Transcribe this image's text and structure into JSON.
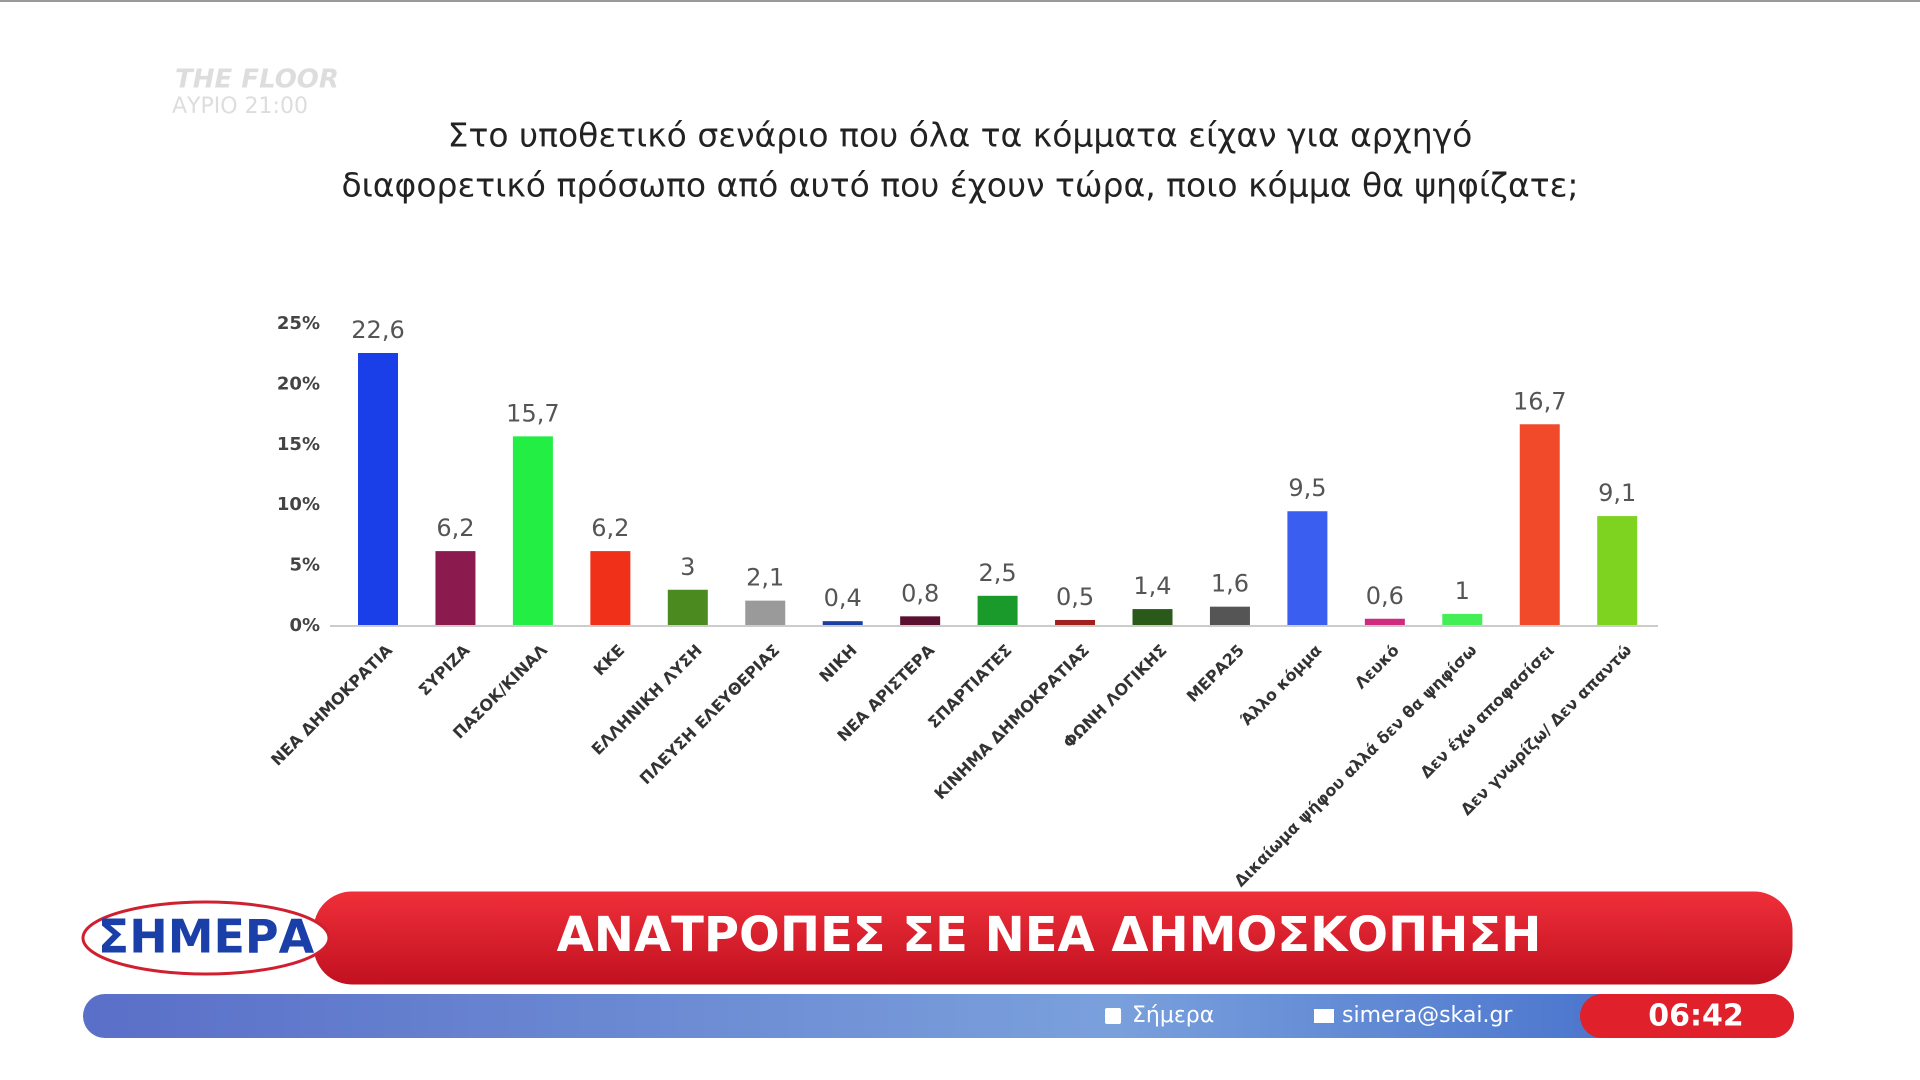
{
  "chart_data": {
    "type": "bar",
    "title": [
      "Στο υποθετικό σενάριο που όλα τα κόμματα είχαν για αρχηγό",
      "διαφορετικό πρόσωπο από αυτό που έχουν τώρα, ποιο κόμμα θα ψηφίζατε;"
    ],
    "categories": [
      "ΝΕΑ ΔΗΜΟΚΡΑΤΙΑ",
      "ΣΥΡΙΖΑ",
      "ΠΑΣΟΚ/ΚΙΝΑΛ",
      "ΚΚΕ",
      "ΕΛΛΗΝΙΚΗ ΛΥΣΗ",
      "ΠΛΕΥΣΗ ΕΛΕΥΘΕΡΙΑΣ",
      "ΝΙΚΗ",
      "ΝΕΑ ΑΡΙΣΤΕΡΑ",
      "ΣΠΑΡΤΙΑΤΕΣ",
      "ΚΙΝΗΜΑ ΔΗΜΟΚΡΑΤΙΑΣ",
      "ΦΩΝΗ ΛΟΓΙΚΗΣ",
      "ΜΕΡΑ25",
      "Άλλο κόμμα",
      "Λευκό",
      "Δικαίωμα ψήφου αλλά δεν θα ψηφίσω",
      "Δεν έχω αποφασίσει",
      "Δεν γνωρίζω/ Δεν απαντώ"
    ],
    "values": [
      22.6,
      6.2,
      15.7,
      6.2,
      3,
      2.1,
      0.4,
      0.8,
      2.5,
      0.5,
      1.4,
      1.6,
      9.5,
      0.6,
      1,
      16.7,
      9.1
    ],
    "value_labels": [
      "22,6",
      "6,2",
      "15,7",
      "6,2",
      "3",
      "2,1",
      "0,4",
      "0,8",
      "2,5",
      "0,5",
      "1,4",
      "1,6",
      "9,5",
      "0,6",
      "1",
      "16,7",
      "9,1"
    ],
    "colors": [
      "#1a3fe8",
      "#8b1a4f",
      "#22ee44",
      "#f03018",
      "#4a8a1e",
      "#9a9a9a",
      "#1a3fa0",
      "#5a1030",
      "#1a9a2a",
      "#a02020",
      "#2a5a1a",
      "#555555",
      "#3a5ef0",
      "#d02a80",
      "#44ee55",
      "#f04a2a",
      "#7ed321"
    ],
    "ylim": [
      0,
      25
    ],
    "yticks": [
      {
        "value": 0,
        "label": "0%"
      },
      {
        "value": 5,
        "label": "5%"
      },
      {
        "value": 10,
        "label": "10%"
      },
      {
        "value": 15,
        "label": "15%"
      },
      {
        "value": 20,
        "label": "20%"
      },
      {
        "value": 25,
        "label": "25%"
      }
    ],
    "grid": false
  },
  "overlay": {
    "promo_title": "THE FLOOR",
    "promo_time": "ΑΥΡΙΟ 21:00",
    "show_logo": "ΣΗΜΕΡΑ",
    "headline": "ΑΝΑΤΡΟΠΕΣ ΣΕ ΝΕΑ ΔΗΜΟΣΚΟΠΗΣΗ",
    "facebook": "Σήμερα",
    "email": "simera@skai.gr",
    "clock": "06:42"
  }
}
